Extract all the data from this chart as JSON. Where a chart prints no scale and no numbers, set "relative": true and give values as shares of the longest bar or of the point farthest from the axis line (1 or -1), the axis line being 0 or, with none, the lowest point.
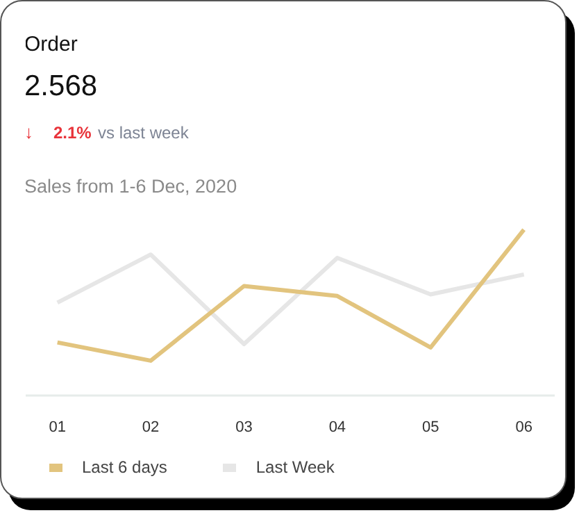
{
  "chart_data": {
    "type": "line",
    "title": "Order",
    "annotations": [
      "2.568",
      "↓",
      "2.1%",
      "vs last week",
      "Sales from 1-6 Dec, 2020"
    ],
    "categories": [
      "01",
      "02",
      "03",
      "04",
      "05",
      "06"
    ],
    "relative": true,
    "legend": "bottom",
    "line_style": "solid",
    "marker": "none",
    "series": [
      {
        "name": "Last 6 days",
        "color": "#e2c47e",
        "values": [
          0.32,
          0.21,
          0.66,
          0.6,
          0.29,
          1.0
        ]
      },
      {
        "name": "Last Week",
        "color": "#e6e6e6",
        "values": [
          0.56,
          0.85,
          0.31,
          0.83,
          0.61,
          0.73
        ]
      }
    ]
  }
}
